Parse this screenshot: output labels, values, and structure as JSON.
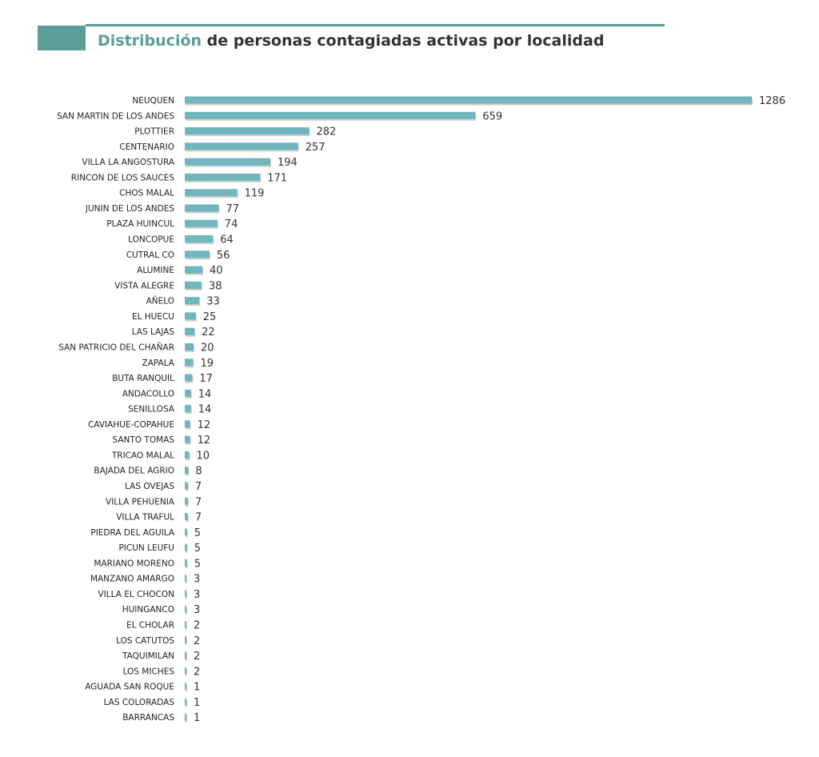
{
  "header": {
    "title_highlight": "Distribución",
    "title_rest": " de personas contagiadas activas por localidad"
  },
  "chart_data": {
    "type": "bar",
    "orientation": "horizontal",
    "title": "Distribución de personas contagiadas activas por localidad",
    "bar_color": "#72b6bd",
    "accent_color": "#5c9c99",
    "grid": false,
    "categories": [
      "NEUQUEN",
      "SAN MARTIN DE LOS ANDES",
      "PLOTTIER",
      "CENTENARIO",
      "VILLA LA ANGOSTURA",
      "RINCON DE LOS SAUCES",
      "CHOS MALAL",
      "JUNIN DE LOS ANDES",
      "PLAZA HUINCUL",
      "LONCOPUE",
      "CUTRAL CO",
      "ALUMINE",
      "VISTA ALEGRE",
      "AÑELO",
      "EL HUECU",
      "LAS LAJAS",
      "SAN PATRICIO DEL CHAÑAR",
      "ZAPALA",
      "BUTA RANQUIL",
      "ANDACOLLO",
      "SENILLOSA",
      "CAVIAHUE-COPAHUE",
      "SANTO TOMAS",
      "TRICAO MALAL",
      "BAJADA DEL AGRIO",
      "LAS OVEJAS",
      "VILLA PEHUENIA",
      "VILLA TRAFUL",
      "PIEDRA DEL AGUILA",
      "PICUN LEUFU",
      "MARIANO MORENO",
      "MANZANO AMARGO",
      "VILLA EL CHOCON",
      "HUINGANCO",
      "EL CHOLAR",
      "LOS CATUTOS",
      "TAQUIMILAN",
      "LOS MICHES",
      "AGUADA SAN ROQUE",
      "LAS COLORADAS",
      "BARRANCAS"
    ],
    "values": [
      1286,
      659,
      282,
      257,
      194,
      171,
      119,
      77,
      74,
      64,
      56,
      40,
      38,
      33,
      25,
      22,
      20,
      19,
      17,
      14,
      14,
      12,
      12,
      10,
      8,
      7,
      7,
      7,
      5,
      5,
      5,
      3,
      3,
      3,
      2,
      2,
      2,
      2,
      1,
      1,
      1
    ]
  }
}
